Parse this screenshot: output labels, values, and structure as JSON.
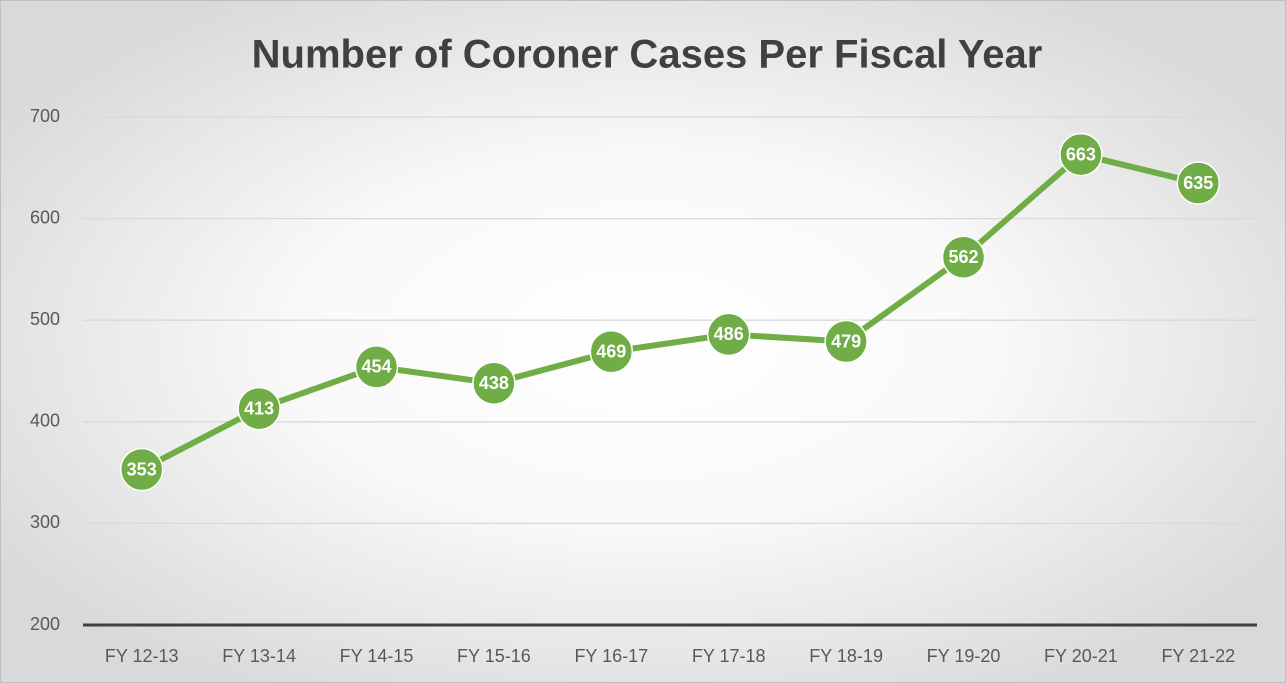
{
  "chart_data": {
    "type": "line",
    "title": "Number of Coroner Cases Per Fiscal Year",
    "categories": [
      "FY 12-13",
      "FY 13-14",
      "FY 14-15",
      "FY 15-16",
      "FY 16-17",
      "FY 17-18",
      "FY 18-19",
      "FY 19-20",
      "FY 20-21",
      "FY 21-22"
    ],
    "values": [
      353,
      413,
      454,
      438,
      469,
      486,
      479,
      562,
      663,
      635
    ],
    "color": "#70ad47",
    "ylim": [
      200,
      700
    ],
    "yticks": [
      200,
      300,
      400,
      500,
      600,
      700
    ],
    "grid": true
  }
}
